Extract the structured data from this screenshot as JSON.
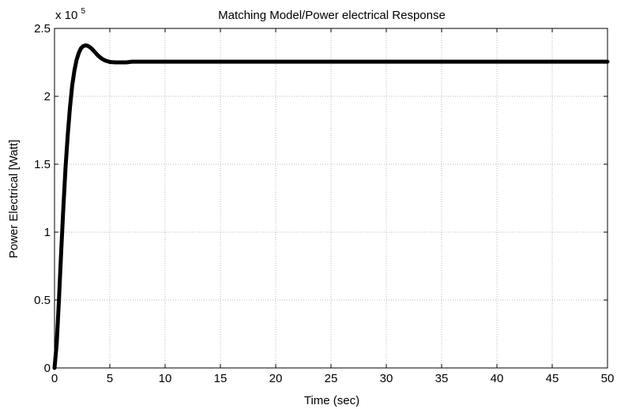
{
  "chart_data": {
    "type": "line",
    "title": "Matching Model/Power electrical Response",
    "xlabel": "Time (sec)",
    "ylabel": "Power Electrical [Watt]",
    "xlim": [
      0,
      50
    ],
    "ylim": [
      0,
      250000
    ],
    "y_exponent_label": "x 10",
    "y_exponent_power": "5",
    "x_ticks": [
      0,
      5,
      10,
      15,
      20,
      25,
      30,
      35,
      40,
      45,
      50
    ],
    "x_tick_labels": [
      "0",
      "5",
      "10",
      "15",
      "20",
      "25",
      "30",
      "35",
      "40",
      "45",
      "50"
    ],
    "y_ticks": [
      0,
      50000,
      100000,
      150000,
      200000,
      250000
    ],
    "y_tick_labels": [
      "0",
      "0.5",
      "1",
      "1.5",
      "2",
      "2.5"
    ],
    "grid": true,
    "line_color": "#000000",
    "series": [
      {
        "x": [
          0,
          0.2,
          0.4,
          0.6,
          0.8,
          1.0,
          1.2,
          1.4,
          1.6,
          1.8,
          2.0,
          2.2,
          2.4,
          2.6,
          2.8,
          3.0,
          3.2,
          3.4,
          3.6,
          3.8,
          4.0,
          4.3,
          4.6,
          5.0,
          5.5,
          6.0,
          6.5,
          7.0,
          10,
          15,
          20,
          25,
          30,
          35,
          40,
          45,
          50
        ],
        "values": [
          0,
          18000,
          50000,
          85000,
          118000,
          148000,
          172000,
          192000,
          208000,
          219000,
          227000,
          232000,
          235500,
          237000,
          237500,
          237200,
          236200,
          234800,
          233000,
          231200,
          229500,
          227600,
          226300,
          225300,
          225000,
          225000,
          225000,
          225500,
          225500,
          225500,
          225500,
          225500,
          225500,
          225500,
          225500,
          225500,
          225500
        ]
      }
    ]
  }
}
